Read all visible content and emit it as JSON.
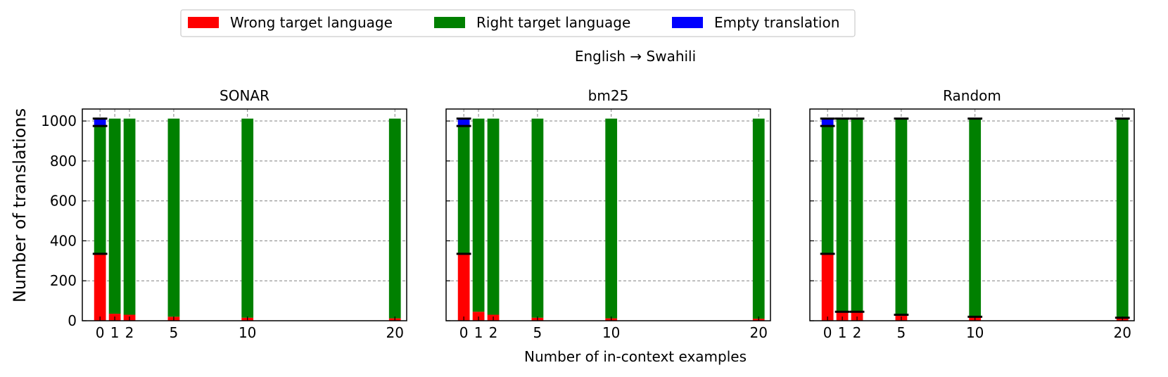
{
  "chart_data": {
    "type": "bar",
    "stacked": true,
    "suptitle": "English → Swahili",
    "xlabel": "Number of in-context examples",
    "ylabel": "Number of translations",
    "ylim": [
      0,
      1060
    ],
    "yticks": [
      0,
      200,
      400,
      600,
      800,
      1000
    ],
    "xticks": [
      0,
      1,
      2,
      5,
      10,
      20
    ],
    "grid": true,
    "legend": {
      "placement": "top-center",
      "entries": [
        {
          "label": "Wrong target language",
          "color": "#ff0000"
        },
        {
          "label": "Right target language",
          "color": "#008000"
        },
        {
          "label": "Empty translation",
          "color": "#0000ff"
        }
      ]
    },
    "panels": [
      {
        "title": "SONAR",
        "x": [
          0,
          1,
          2,
          5,
          10,
          20
        ],
        "series": [
          {
            "name": "Wrong target language",
            "values": [
              335,
              35,
              30,
              20,
              15,
              12
            ]
          },
          {
            "name": "Right target language",
            "values": [
              640,
              977,
              982,
              992,
              997,
              1000
            ]
          },
          {
            "name": "Empty translation",
            "values": [
              37,
              0,
              0,
              0,
              0,
              0
            ]
          }
        ],
        "error_tops": [
          1012,
          null,
          null,
          null,
          null,
          null
        ],
        "error_marks": [
          975,
          335
        ]
      },
      {
        "title": "bm25",
        "x": [
          0,
          1,
          2,
          5,
          10,
          20
        ],
        "series": [
          {
            "name": "Wrong target language",
            "values": [
              335,
              45,
              30,
              15,
              12,
              10
            ]
          },
          {
            "name": "Right target language",
            "values": [
              640,
              967,
              982,
              997,
              1000,
              1002
            ]
          },
          {
            "name": "Empty translation",
            "values": [
              37,
              0,
              0,
              0,
              0,
              0
            ]
          }
        ],
        "error_tops": [
          1012,
          null,
          null,
          null,
          null,
          null
        ],
        "error_marks": [
          975,
          335
        ]
      },
      {
        "title": "Random",
        "x": [
          0,
          1,
          2,
          5,
          10,
          20
        ],
        "series": [
          {
            "name": "Wrong target language",
            "values": [
              335,
              45,
              45,
              30,
              20,
              15
            ]
          },
          {
            "name": "Right target language",
            "values": [
              640,
              967,
              967,
              982,
              992,
              997
            ]
          },
          {
            "name": "Empty translation",
            "values": [
              37,
              0,
              0,
              0,
              0,
              0
            ]
          }
        ],
        "error_tops": [
          1012,
          1012,
          1012,
          1012,
          1012,
          1012
        ],
        "error_marks_random": true
      }
    ]
  }
}
